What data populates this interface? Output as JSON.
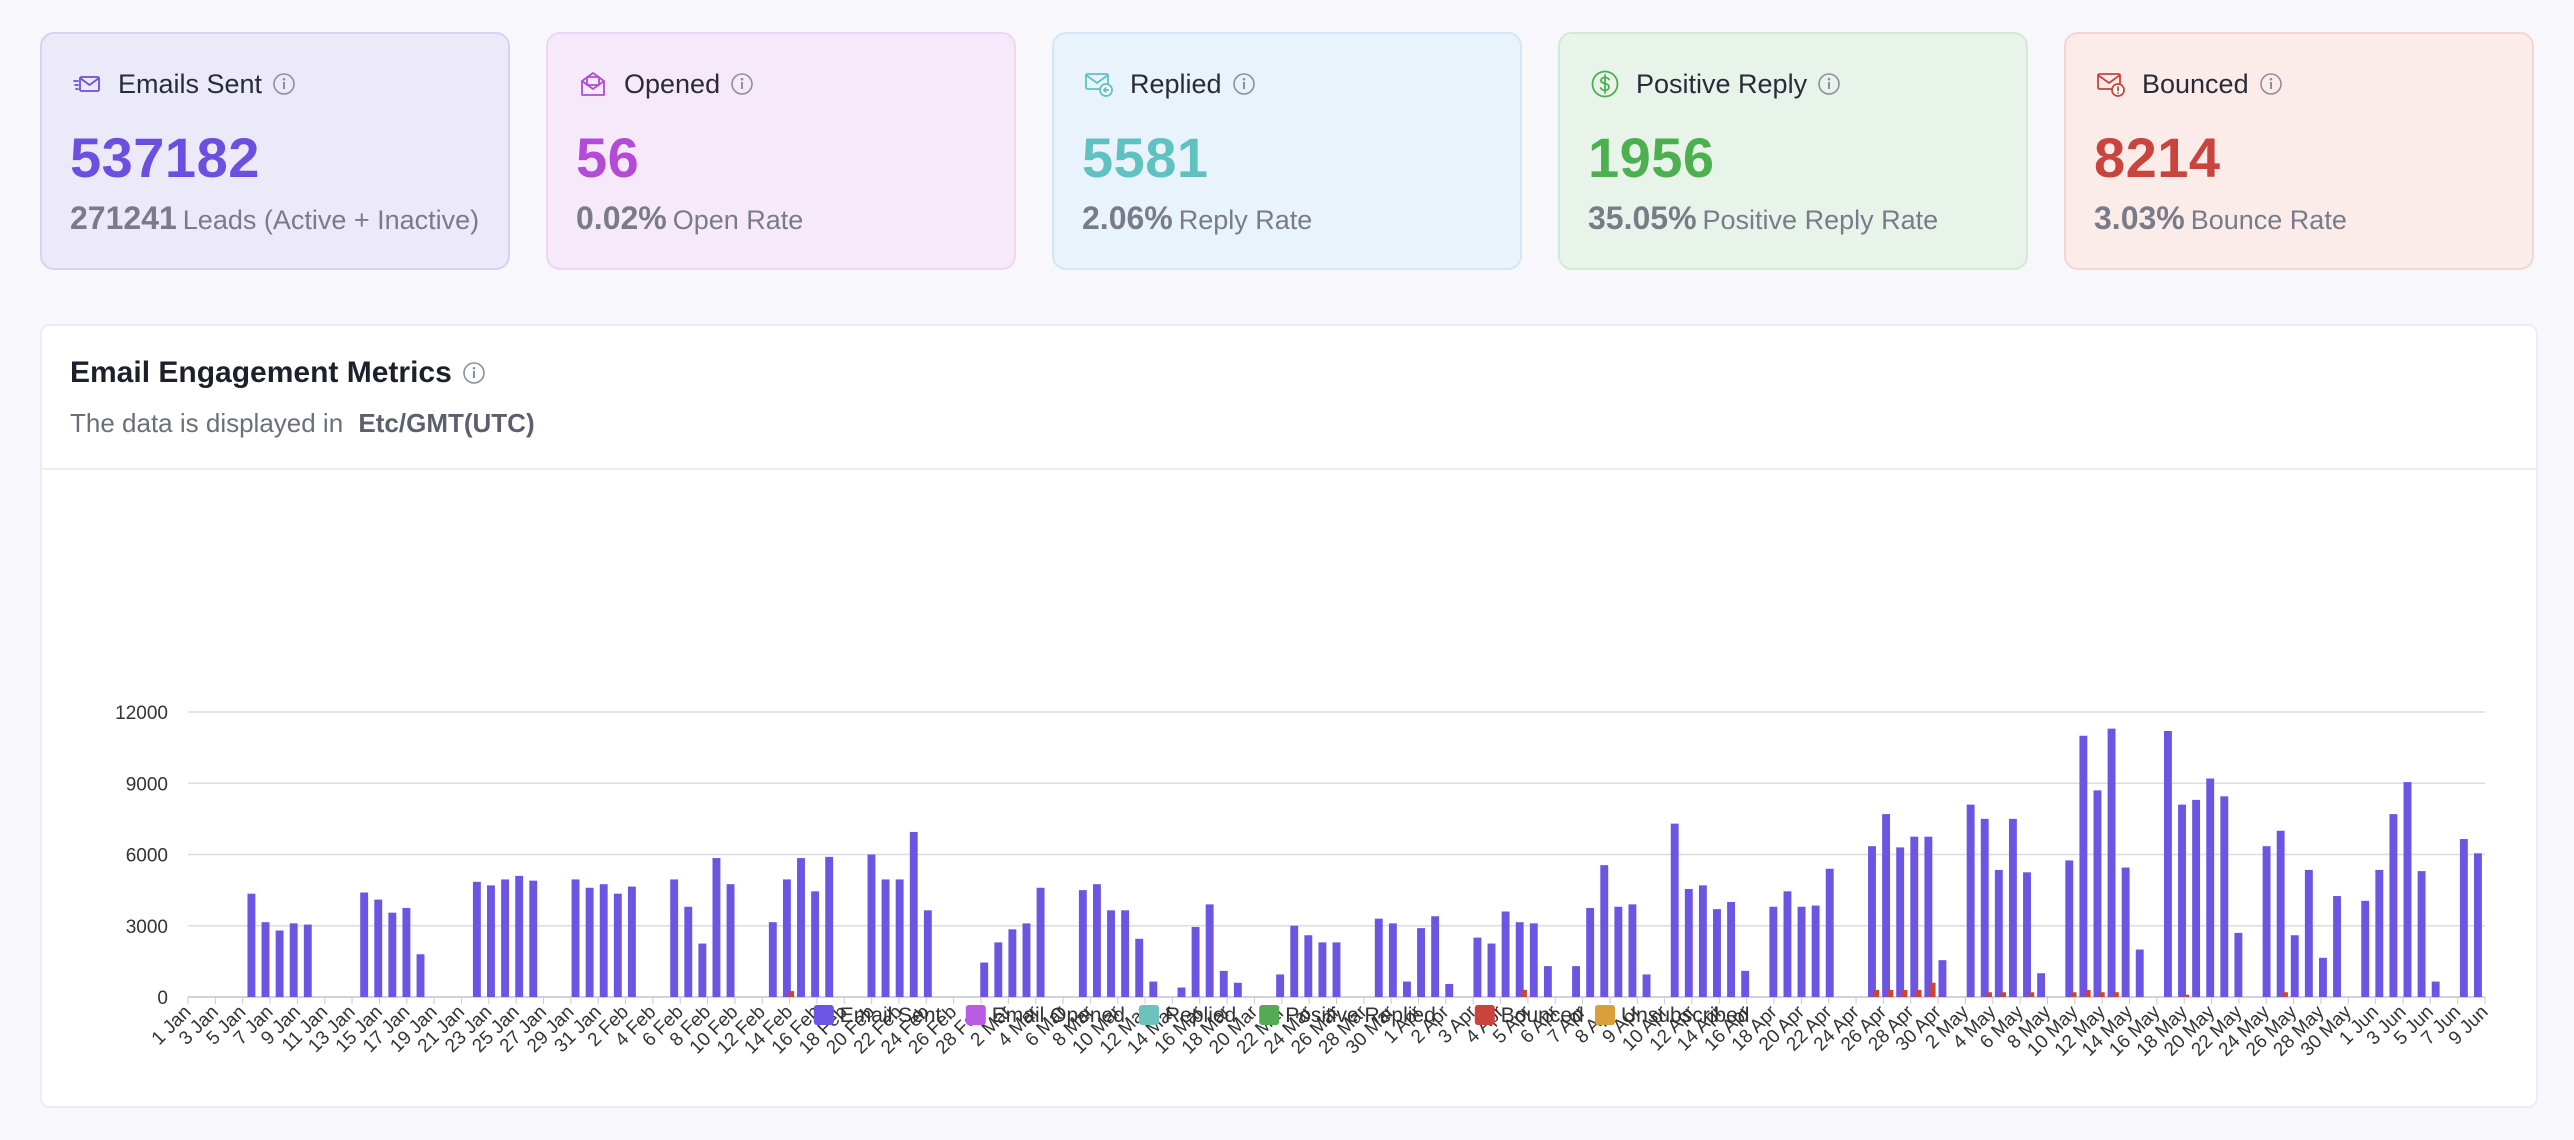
{
  "cards": [
    {
      "key": "sent",
      "title": "Emails Sent",
      "value": "537182",
      "sub_num": "271241",
      "sub_text": "Leads (Active + Inactive)",
      "icon": "email-send-icon",
      "bg": "#ece9f9",
      "border": "#d6d2f1",
      "color": "#6c4fe0"
    },
    {
      "key": "opened",
      "title": "Opened",
      "value": "56",
      "sub_num": "0.02%",
      "sub_text": "Open Rate",
      "icon": "email-open-icon",
      "bg": "#f6eafa",
      "border": "#ecd6f4",
      "color": "#b44bd6"
    },
    {
      "key": "replied",
      "title": "Replied",
      "value": "5581",
      "sub_num": "2.06%",
      "sub_text": "Reply Rate",
      "icon": "email-reply-icon",
      "bg": "#e9f3fc",
      "border": "#d3e6f6",
      "color": "#5fc2c0"
    },
    {
      "key": "positive",
      "title": "Positive Reply",
      "value": "1956",
      "sub_num": "35.05%",
      "sub_text": "Positive Reply Rate",
      "icon": "dollar-circle-icon",
      "bg": "#e8f4ea",
      "border": "#d1ead5",
      "color": "#4caf50"
    },
    {
      "key": "bounced",
      "title": "Bounced",
      "value": "8214",
      "sub_num": "3.03%",
      "sub_text": "Bounce Rate",
      "icon": "email-bounce-icon",
      "bg": "#fbecea",
      "border": "#f3d6d2",
      "color": "#c9443c"
    }
  ],
  "panel": {
    "title": "Email Engagement Metrics",
    "subtitle_prefix": "The data is displayed in",
    "timezone": "Etc/GMT(UTC)"
  },
  "chart_data": {
    "type": "bar",
    "title": "",
    "xlabel": "",
    "ylabel": "",
    "ylim": [
      0,
      12000
    ],
    "yticks": [
      0,
      3000,
      6000,
      9000,
      12000
    ],
    "grid": true,
    "legend_position": "bottom",
    "x_ticks": [
      "1 Jan",
      "3 Jan",
      "5 Jan",
      "7 Jan",
      "9 Jan",
      "11 Jan",
      "13 Jan",
      "15 Jan",
      "17 Jan",
      "19 Jan",
      "21 Jan",
      "23 Jan",
      "25 Jan",
      "27 Jan",
      "29 Jan",
      "31 Jan",
      "2 Feb",
      "4 Feb",
      "6 Feb",
      "8 Feb",
      "10 Feb",
      "12 Feb",
      "14 Feb",
      "16 Feb",
      "18 Feb",
      "20 Feb",
      "22 Feb",
      "24 Feb",
      "26 Feb",
      "28 Feb",
      "2 Mar",
      "4 Mar",
      "6 Mar",
      "8 Mar",
      "10 Mar",
      "12 Mar",
      "14 Mar",
      "16 Mar",
      "18 Mar",
      "20 Mar",
      "22 Mar",
      "24 Mar",
      "26 Mar",
      "28 Mar",
      "30 Mar",
      "1 Apr",
      "2 Apr",
      "3 Apr",
      "4 Apr",
      "5 Apr",
      "6 Apr",
      "7 Apr",
      "8 Apr",
      "9 Apr",
      "10 Apr",
      "12 Apr",
      "14 Apr",
      "16 Apr",
      "18 Apr",
      "20 Apr",
      "22 Apr",
      "24 Apr",
      "26 Apr",
      "28 Apr",
      "30 Apr",
      "2 May",
      "4 May",
      "6 May",
      "8 May",
      "10 May",
      "12 May",
      "14 May",
      "16 May",
      "18 May",
      "20 May",
      "22 May",
      "24 May",
      "26 May",
      "28 May",
      "30 May",
      "1 Jun",
      "3 Jun",
      "5 Jun",
      "7 Jun",
      "9 Jun"
    ],
    "series": [
      {
        "name": "Email Sent",
        "color": "#6c55e3",
        "values": [
          0,
          0,
          0,
          0,
          4350,
          3150,
          2800,
          3100,
          3050,
          0,
          0,
          0,
          4400,
          4100,
          3550,
          3750,
          1800,
          0,
          0,
          0,
          4850,
          4700,
          4950,
          5100,
          4900,
          0,
          0,
          4950,
          4600,
          4750,
          4350,
          4650,
          0,
          0,
          4950,
          3800,
          2250,
          5850,
          4750,
          0,
          0,
          3150,
          4950,
          5850,
          4450,
          5900,
          0,
          0,
          6000,
          4950,
          4950,
          6950,
          3650,
          0,
          0,
          0,
          1450,
          2300,
          2850,
          3100,
          4600,
          0,
          0,
          4500,
          4750,
          3650,
          3650,
          2450,
          650,
          0,
          400,
          2950,
          3900,
          1100,
          600,
          0,
          0,
          950,
          3000,
          2600,
          2300,
          2300,
          0,
          0,
          3300,
          3100,
          650,
          2900,
          3400,
          550,
          0,
          2500,
          2250,
          3600,
          3150,
          3100,
          1300,
          0,
          1300,
          3750,
          5550,
          3800,
          3900,
          950,
          0,
          7300,
          4550,
          4700,
          3700,
          4000,
          1100,
          0,
          3800,
          4450,
          3800,
          3850,
          5400,
          0,
          0,
          6350,
          7700,
          6300,
          6750,
          6750,
          1550,
          0,
          8100,
          7500,
          5350,
          7500,
          5250,
          1000,
          0,
          5750,
          11000,
          8700,
          11300,
          5450,
          2000,
          0,
          11200,
          8100,
          8300,
          9200,
          8450,
          2700,
          0,
          6350,
          7000,
          2600,
          5350,
          1650,
          4250,
          0,
          4050,
          5350,
          7700,
          9050,
          5300,
          650,
          0,
          6650,
          6050
        ]
      },
      {
        "name": "Email Opened",
        "color": "#b85ce6",
        "values": []
      },
      {
        "name": "Replied",
        "color": "#6cc3bd",
        "values": []
      },
      {
        "name": "Positive Replied",
        "color": "#55aa55",
        "values": []
      },
      {
        "name": "Bounced",
        "color": "#c9443c",
        "values": [
          0,
          0,
          0,
          0,
          0,
          0,
          0,
          0,
          0,
          0,
          0,
          0,
          0,
          0,
          0,
          0,
          0,
          0,
          0,
          0,
          0,
          0,
          0,
          0,
          0,
          0,
          0,
          0,
          0,
          0,
          0,
          0,
          0,
          0,
          0,
          0,
          0,
          0,
          0,
          0,
          0,
          0,
          250,
          0,
          0,
          0,
          0,
          0,
          0,
          0,
          0,
          0,
          0,
          0,
          0,
          0,
          0,
          0,
          0,
          0,
          0,
          0,
          0,
          0,
          0,
          0,
          0,
          0,
          0,
          0,
          0,
          0,
          0,
          0,
          0,
          0,
          0,
          0,
          0,
          0,
          0,
          0,
          0,
          0,
          0,
          0,
          0,
          0,
          0,
          0,
          0,
          0,
          0,
          0,
          300,
          0,
          0,
          0,
          0,
          0,
          0,
          0,
          0,
          0,
          0,
          0,
          0,
          0,
          0,
          0,
          0,
          0,
          0,
          0,
          0,
          0,
          0,
          0,
          0,
          300,
          300,
          300,
          300,
          600,
          0,
          0,
          0,
          200,
          200,
          0,
          200,
          0,
          0,
          200,
          300,
          200,
          200,
          0,
          0,
          0,
          0,
          100,
          0,
          0,
          0,
          0,
          0,
          0,
          200,
          0,
          0,
          0,
          0,
          0,
          0,
          0,
          0,
          0,
          0,
          0,
          0,
          0,
          0,
          0,
          0,
          0
        ]
      },
      {
        "name": "Unsubscribed",
        "color": "#d9a03a",
        "values": []
      }
    ]
  }
}
